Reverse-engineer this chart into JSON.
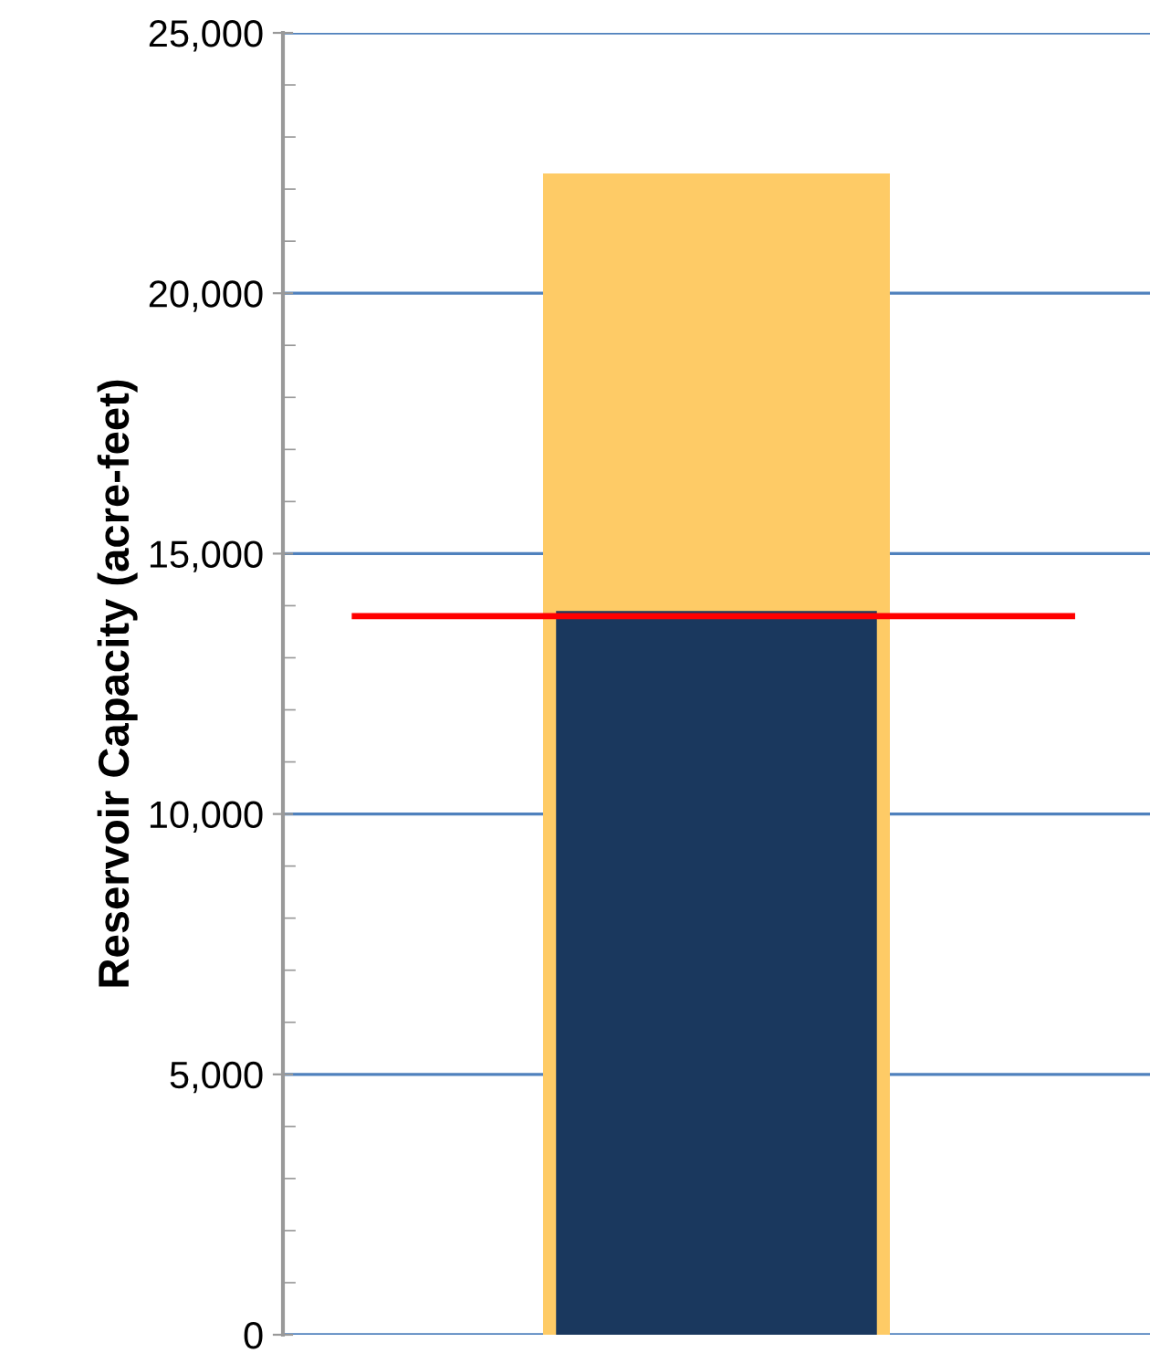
{
  "chart_data": {
    "type": "bar",
    "ylabel": "Reservoir Capacity (acre-feet)",
    "categories": [
      null
    ],
    "series": [
      {
        "color": "#fecb66",
        "values": [
          22300
        ]
      },
      {
        "color": "#1a385e",
        "values": [
          13900
        ]
      }
    ],
    "ylim": [
      0,
      25000
    ],
    "yticks": [
      {
        "value": 0,
        "label": "0"
      },
      {
        "value": 5000,
        "label": "5,000"
      },
      {
        "value": 10000,
        "label": "10,000"
      },
      {
        "value": 15000,
        "label": "15,000"
      },
      {
        "value": 20000,
        "label": "20,000"
      },
      {
        "value": 25000,
        "label": "25,000"
      }
    ],
    "grid": "y",
    "legend": false,
    "ref_lines": [
      {
        "axis": "y",
        "value": 13800,
        "color": "#ff0000"
      }
    ]
  }
}
